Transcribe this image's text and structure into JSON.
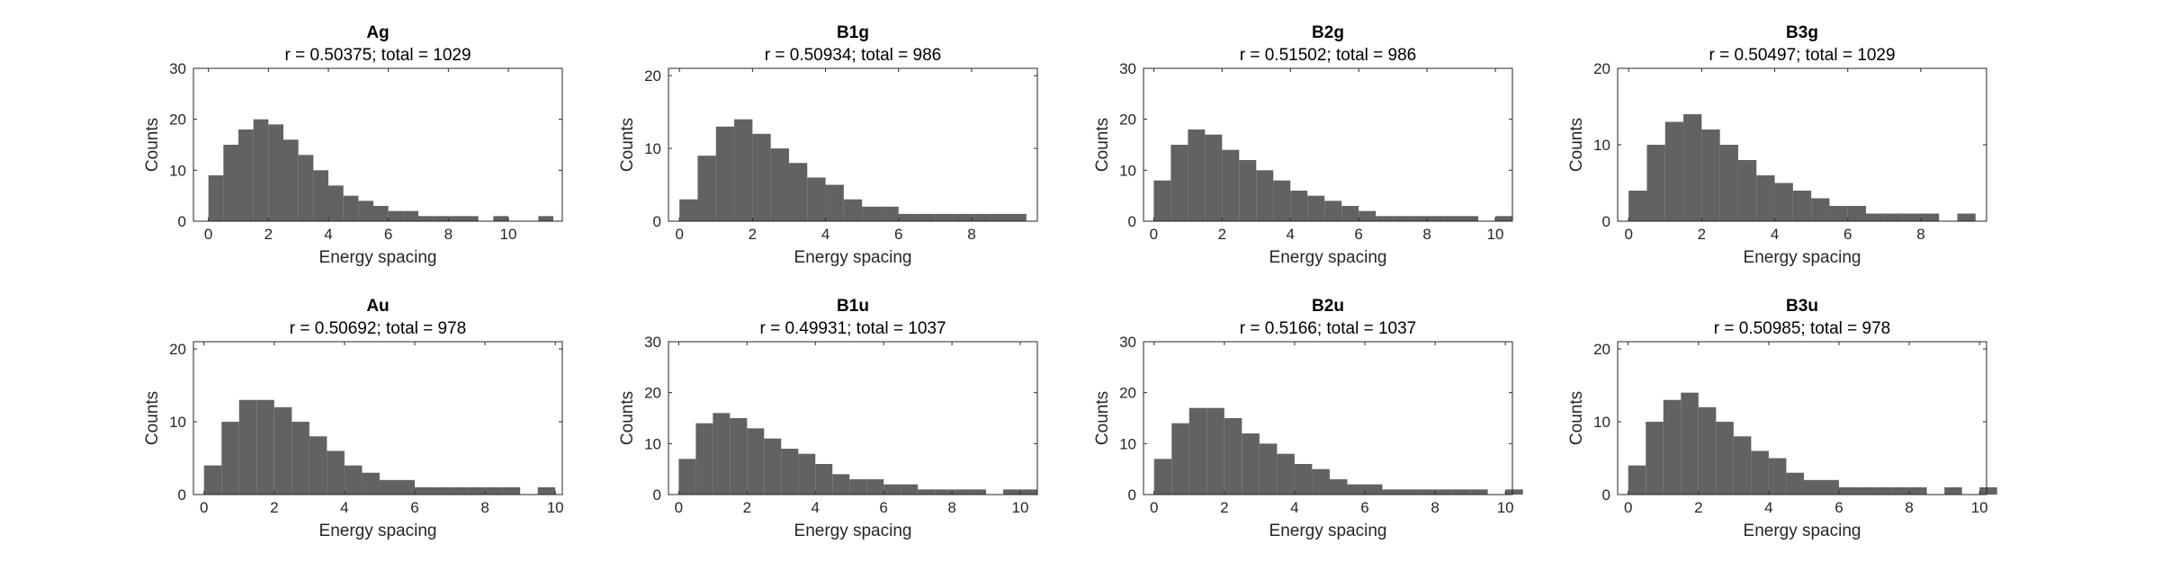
{
  "colors": {
    "bar": "#626262",
    "axis": "#262626",
    "background": "#ffffff"
  },
  "chart_data": [
    {
      "type": "bar",
      "title": "Ag",
      "subtitle": "r = 0.50375; total = 1029",
      "xlabel": "Energy spacing",
      "ylabel": "Counts",
      "xlim": [
        -0.5,
        11.8
      ],
      "ylim": [
        0,
        30
      ],
      "xticks": [
        0,
        2,
        4,
        6,
        8,
        10
      ],
      "yticks": [
        0,
        10,
        20,
        30
      ],
      "x": [
        0,
        0.5,
        1,
        1.5,
        2,
        2.5,
        3,
        3.5,
        4,
        4.5,
        5,
        5.5,
        6,
        6.5,
        7,
        7.5,
        8,
        8.5,
        9,
        9.5,
        10,
        10.5,
        11,
        11.5
      ],
      "values": [
        9,
        15,
        18,
        20,
        19,
        16,
        13,
        10,
        7,
        5,
        4,
        3,
        2,
        2,
        1,
        1,
        1,
        1,
        0,
        1,
        0,
        0,
        1,
        0
      ]
    },
    {
      "type": "bar",
      "title": "B1g",
      "subtitle": "r = 0.50934; total = 986",
      "xlabel": "Energy spacing",
      "ylabel": "Counts",
      "xlim": [
        -0.3,
        9.8
      ],
      "ylim": [
        0,
        21
      ],
      "xticks": [
        0,
        2,
        4,
        6,
        8
      ],
      "yticks": [
        0,
        10,
        20
      ],
      "x": [
        0,
        0.5,
        1,
        1.5,
        2,
        2.5,
        3,
        3.5,
        4,
        4.5,
        5,
        5.5,
        6,
        6.5,
        7,
        7.5,
        8,
        8.5,
        9,
        9.5
      ],
      "values": [
        3,
        9,
        13,
        14,
        12,
        10,
        8,
        6,
        5,
        3,
        2,
        2,
        1,
        1,
        1,
        1,
        1,
        1,
        1,
        0
      ]
    },
    {
      "type": "bar",
      "title": "B2g",
      "subtitle": "r = 0.51502; total = 986",
      "xlabel": "Energy spacing",
      "ylabel": "Counts",
      "xlim": [
        -0.3,
        10.5
      ],
      "ylim": [
        0,
        30
      ],
      "xticks": [
        0,
        2,
        4,
        6,
        8,
        10
      ],
      "yticks": [
        0,
        10,
        20,
        30
      ],
      "x": [
        0,
        0.5,
        1,
        1.5,
        2,
        2.5,
        3,
        3.5,
        4,
        4.5,
        5,
        5.5,
        6,
        6.5,
        7,
        7.5,
        8,
        8.5,
        9,
        9.5,
        10
      ],
      "values": [
        8,
        15,
        18,
        17,
        14,
        12,
        10,
        8,
        6,
        5,
        4,
        3,
        2,
        1,
        1,
        1,
        1,
        1,
        1,
        0,
        1
      ]
    },
    {
      "type": "bar",
      "title": "B3g",
      "subtitle": "r = 0.50497; total = 1029",
      "xlabel": "Energy spacing",
      "ylabel": "Counts",
      "xlim": [
        -0.3,
        9.8
      ],
      "ylim": [
        0,
        20
      ],
      "xticks": [
        0,
        2,
        4,
        6,
        8
      ],
      "yticks": [
        0,
        10,
        20
      ],
      "x": [
        0,
        0.5,
        1,
        1.5,
        2,
        2.5,
        3,
        3.5,
        4,
        4.5,
        5,
        5.5,
        6,
        6.5,
        7,
        7.5,
        8,
        8.5,
        9,
        9.5
      ],
      "values": [
        4,
        10,
        13,
        14,
        12,
        10,
        8,
        6,
        5,
        4,
        3,
        2,
        2,
        1,
        1,
        1,
        1,
        0,
        1,
        0
      ]
    },
    {
      "type": "bar",
      "title": "Au",
      "subtitle": "r = 0.50692; total = 978",
      "xlabel": "Energy spacing",
      "ylabel": "Counts",
      "xlim": [
        -0.3,
        10.2
      ],
      "ylim": [
        0,
        21
      ],
      "xticks": [
        0,
        2,
        4,
        6,
        8,
        10
      ],
      "yticks": [
        0,
        10,
        20
      ],
      "x": [
        0,
        0.5,
        1,
        1.5,
        2,
        2.5,
        3,
        3.5,
        4,
        4.5,
        5,
        5.5,
        6,
        6.5,
        7,
        7.5,
        8,
        8.5,
        9,
        9.5,
        10
      ],
      "values": [
        4,
        10,
        13,
        13,
        12,
        10,
        8,
        6,
        4,
        3,
        2,
        2,
        1,
        1,
        1,
        1,
        1,
        1,
        0,
        1,
        0
      ]
    },
    {
      "type": "bar",
      "title": "B1u",
      "subtitle": "r = 0.49931; total = 1037",
      "xlabel": "Energy spacing",
      "ylabel": "Counts",
      "xlim": [
        -0.3,
        10.5
      ],
      "ylim": [
        0,
        30
      ],
      "xticks": [
        0,
        2,
        4,
        6,
        8,
        10
      ],
      "yticks": [
        0,
        10,
        20,
        30
      ],
      "x": [
        0,
        0.5,
        1,
        1.5,
        2,
        2.5,
        3,
        3.5,
        4,
        4.5,
        5,
        5.5,
        6,
        6.5,
        7,
        7.5,
        8,
        8.5,
        9,
        9.5,
        10
      ],
      "values": [
        7,
        14,
        16,
        15,
        13,
        11,
        9,
        8,
        6,
        4,
        3,
        3,
        2,
        2,
        1,
        1,
        1,
        1,
        0,
        1,
        1
      ]
    },
    {
      "type": "bar",
      "title": "B2u",
      "subtitle": "r = 0.5166; total = 1037",
      "xlabel": "Energy spacing",
      "ylabel": "Counts",
      "xlim": [
        -0.3,
        10.2
      ],
      "ylim": [
        0,
        30
      ],
      "xticks": [
        0,
        2,
        4,
        6,
        8,
        10
      ],
      "yticks": [
        0,
        10,
        20,
        30
      ],
      "x": [
        0,
        0.5,
        1,
        1.5,
        2,
        2.5,
        3,
        3.5,
        4,
        4.5,
        5,
        5.5,
        6,
        6.5,
        7,
        7.5,
        8,
        8.5,
        9,
        9.5,
        10
      ],
      "values": [
        7,
        14,
        17,
        17,
        15,
        12,
        10,
        8,
        6,
        5,
        3,
        2,
        2,
        1,
        1,
        1,
        1,
        1,
        1,
        0,
        1
      ]
    },
    {
      "type": "bar",
      "title": "B3u",
      "subtitle": "r = 0.50985; total = 978",
      "xlabel": "Energy spacing",
      "ylabel": "Counts",
      "xlim": [
        -0.3,
        10.2
      ],
      "ylim": [
        0,
        21
      ],
      "xticks": [
        0,
        2,
        4,
        6,
        8,
        10
      ],
      "yticks": [
        0,
        10,
        20
      ],
      "x": [
        0,
        0.5,
        1,
        1.5,
        2,
        2.5,
        3,
        3.5,
        4,
        4.5,
        5,
        5.5,
        6,
        6.5,
        7,
        7.5,
        8,
        8.5,
        9,
        9.5,
        10
      ],
      "values": [
        4,
        10,
        13,
        14,
        12,
        10,
        8,
        6,
        5,
        3,
        2,
        2,
        1,
        1,
        1,
        1,
        1,
        0,
        1,
        0,
        1
      ]
    }
  ]
}
